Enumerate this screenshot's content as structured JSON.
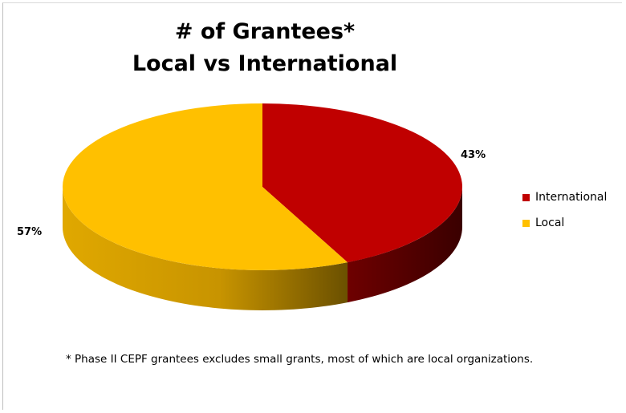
{
  "chart_data": {
    "type": "pie",
    "three_d": true,
    "title_line1": "# of Grantees*",
    "title_line2": "Local vs International",
    "slices": [
      {
        "label": "International",
        "value": 43,
        "percent_label": "43%",
        "color": "#c00000"
      },
      {
        "label": "Local",
        "value": 57,
        "percent_label": "57%",
        "color": "#ffc000"
      }
    ],
    "legend": {
      "position": "right"
    },
    "footnote": "* Phase II CEPF grantees excludes small grants, most of which are local organizations."
  }
}
